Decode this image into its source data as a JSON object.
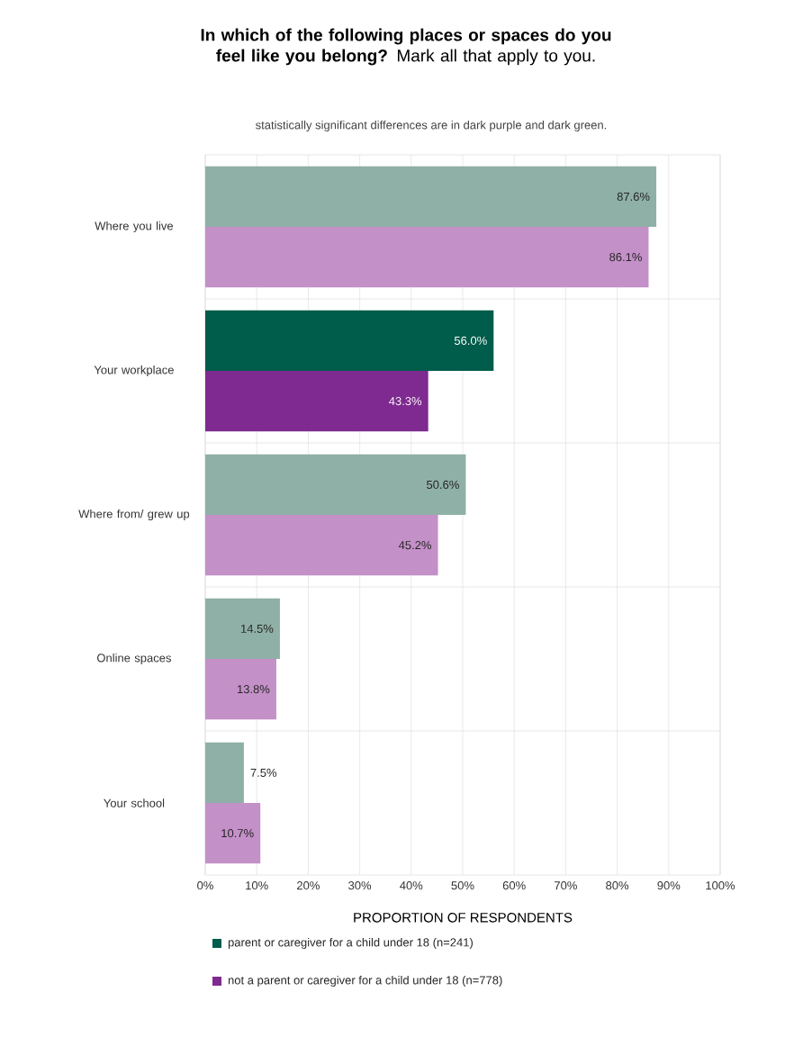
{
  "chart_data": {
    "type": "bar",
    "orientation": "horizontal",
    "title": "**In which of the following places or spaces do you feel like you belong?** Mark all that apply to you.",
    "subtitle": "statistically significant differences are in dark purple and dark green.",
    "xlabel": "PROPORTION OF RESPONDENTS",
    "categories": [
      "Where you live",
      "Your workplace",
      "Where from/ grew up",
      "Online spaces",
      "Your school"
    ],
    "series": [
      {
        "name": "parent or caregiver for a child under 18 (n=241)",
        "color": "#005c4b",
        "colors": [
          "#8fb0a6",
          "#005c4b",
          "#8fb0a6",
          "#8fb0a6",
          "#8fb0a6"
        ],
        "values": [
          87.6,
          56.0,
          50.6,
          14.5,
          7.5
        ],
        "value_labels": [
          "87.6%",
          "56.0%",
          "50.6%",
          "14.5%",
          "7.5%"
        ]
      },
      {
        "name": "not a parent or caregiver for a child under 18 (n=778)",
        "color": "#7e2a90",
        "colors": [
          "#c490c8",
          "#7e2a90",
          "#c490c8",
          "#c490c8",
          "#c490c8"
        ],
        "values": [
          86.1,
          43.3,
          45.2,
          13.8,
          10.7
        ],
        "value_labels": [
          "86.1%",
          "43.3%",
          "45.2%",
          "13.8%",
          "10.7%"
        ]
      }
    ],
    "xlim": [
      0,
      100
    ],
    "xticks": [
      {
        "value": 0,
        "label": "0%"
      },
      {
        "value": 10,
        "label": "10%"
      },
      {
        "value": 20,
        "label": "20%"
      },
      {
        "value": 30,
        "label": "30%"
      },
      {
        "value": 40,
        "label": "40%"
      },
      {
        "value": 50,
        "label": "50%"
      },
      {
        "value": 60,
        "label": "60%"
      },
      {
        "value": 70,
        "label": "70%"
      },
      {
        "value": 80,
        "label": "80%"
      },
      {
        "value": 90,
        "label": "90%"
      },
      {
        "value": 100,
        "label": "100%"
      }
    ],
    "grid": true,
    "legend": "bottom"
  }
}
